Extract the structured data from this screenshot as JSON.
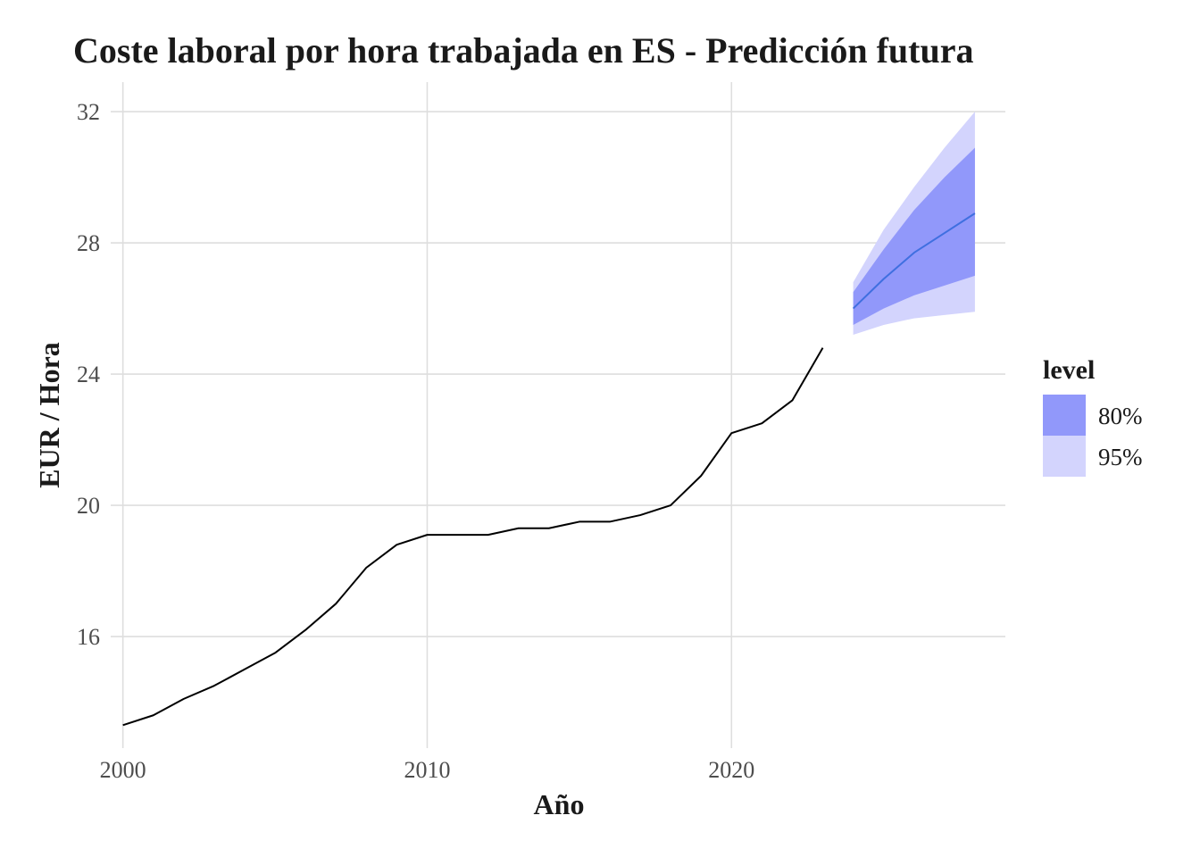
{
  "chart_data": {
    "type": "line",
    "title": "Coste laboral por hora trabajada en ES - Predicción futura",
    "xlabel": "Año",
    "ylabel": "EUR / Hora",
    "xlim": [
      1999.6,
      2029.0
    ],
    "ylim": [
      12.6,
      32.9
    ],
    "x_ticks": [
      2000,
      2010,
      2020
    ],
    "y_ticks": [
      16,
      20,
      24,
      28,
      32
    ],
    "grid": true,
    "colors": {
      "history": "#000000",
      "forecast": "#3f6fe0",
      "band80": "#9198fa",
      "band95": "#d3d4fd"
    },
    "history": {
      "x": [
        2000,
        2001,
        2002,
        2003,
        2004,
        2005,
        2006,
        2007,
        2008,
        2009,
        2010,
        2011,
        2012,
        2013,
        2014,
        2015,
        2016,
        2017,
        2018,
        2019,
        2020,
        2021,
        2022,
        2023
      ],
      "y": [
        13.3,
        13.6,
        14.1,
        14.5,
        15.0,
        15.5,
        16.2,
        17.0,
        18.1,
        18.8,
        19.1,
        19.1,
        19.1,
        19.3,
        19.3,
        19.5,
        19.5,
        19.7,
        20.0,
        20.9,
        22.2,
        22.5,
        23.2,
        24.8
      ]
    },
    "forecast": {
      "x": [
        2024,
        2025,
        2026,
        2027,
        2028
      ],
      "mean": [
        26.0,
        26.9,
        27.7,
        28.3,
        28.9
      ],
      "lo80": [
        25.5,
        26.0,
        26.4,
        26.7,
        27.0
      ],
      "hi80": [
        26.5,
        27.8,
        29.0,
        30.0,
        30.9
      ],
      "lo95": [
        25.2,
        25.5,
        25.7,
        25.8,
        25.9
      ],
      "hi95": [
        26.8,
        28.4,
        29.7,
        30.9,
        32.0
      ]
    },
    "legend": {
      "title": "level",
      "position": "right",
      "items": [
        {
          "label": "80%",
          "color": "#9198fa"
        },
        {
          "label": "95%",
          "color": "#d3d4fd"
        }
      ]
    }
  }
}
